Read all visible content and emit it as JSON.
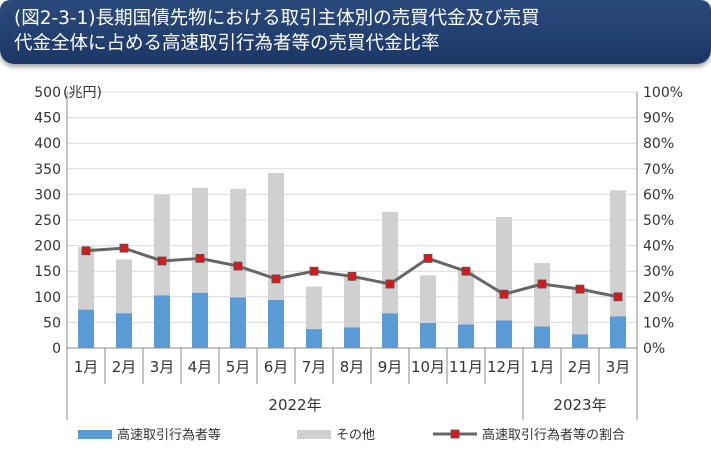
{
  "header": {
    "line1": "(図2-3-1)長期国債先物における取引主体別の売買代金及び売買",
    "line2": "代金全体に占める高速取引行為者等の売買代金比率"
  },
  "chart_data": {
    "type": "bar",
    "stacked": true,
    "categories": [
      "1月",
      "2月",
      "3月",
      "4月",
      "5月",
      "6月",
      "7月",
      "8月",
      "9月",
      "10月",
      "11月",
      "12月",
      "1月",
      "2月",
      "3月"
    ],
    "year_groups": [
      {
        "label": "2022年",
        "start": 0,
        "count": 12
      },
      {
        "label": "2023年",
        "start": 12,
        "count": 3
      }
    ],
    "series": [
      {
        "name": "高速取引行為者等",
        "type": "bar",
        "axis": "left",
        "color": "#5b9bd5",
        "values": [
          75,
          68,
          103,
          108,
          99,
          94,
          37,
          40,
          68,
          49,
          46,
          54,
          42,
          27,
          62
        ]
      },
      {
        "name": "その他",
        "type": "bar",
        "axis": "left",
        "color": "#d0d0d0",
        "values": [
          122,
          105,
          196,
          205,
          212,
          248,
          83,
          100,
          198,
          93,
          106,
          202,
          124,
          90,
          246
        ]
      },
      {
        "name": "高速取引行為者等の割合",
        "type": "line",
        "axis": "right",
        "color": "#666666",
        "marker_color": "#d7191c",
        "values": [
          38,
          39,
          34,
          35,
          32,
          27,
          30,
          28,
          25,
          35,
          30,
          21,
          25,
          23,
          20
        ]
      }
    ],
    "y_left": {
      "unit": "(兆円)",
      "ylim": [
        0,
        500
      ],
      "ticks": [
        "0",
        "50",
        "100",
        "150",
        "200",
        "250",
        "300",
        "350",
        "400",
        "450",
        "500"
      ]
    },
    "y_right": {
      "ylim": [
        0,
        100
      ],
      "ticks": [
        "0%",
        "10%",
        "20%",
        "30%",
        "40%",
        "50%",
        "60%",
        "70%",
        "80%",
        "90%",
        "100%"
      ]
    },
    "legend_position": "bottom"
  }
}
